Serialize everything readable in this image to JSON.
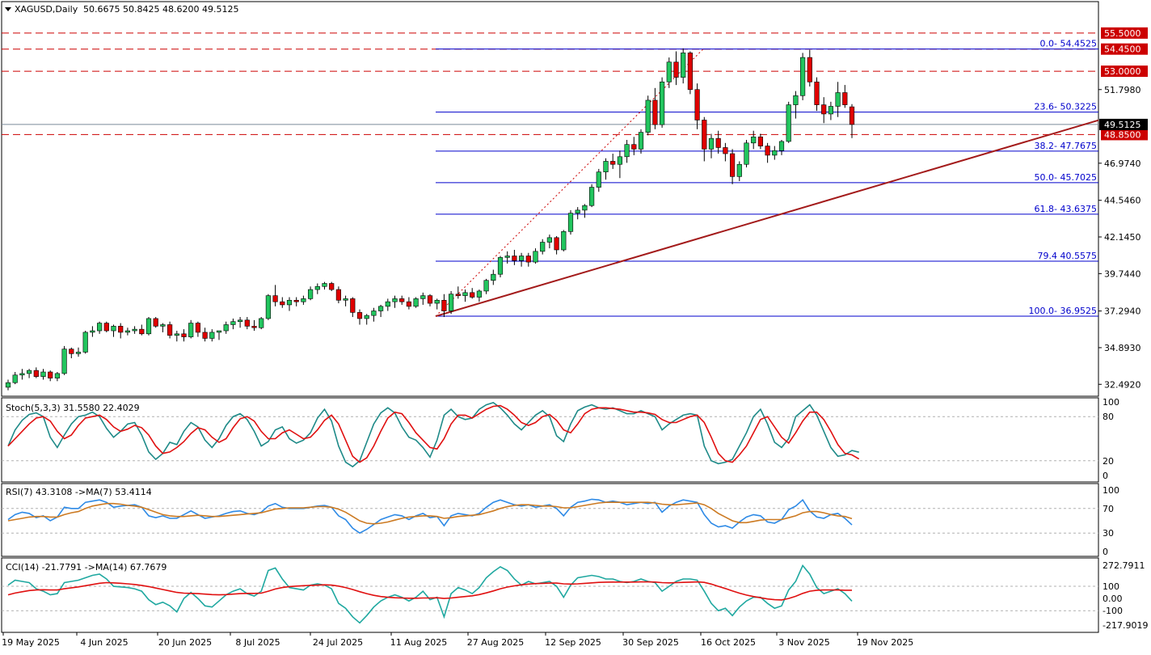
{
  "header": {
    "symbol": "XAGUSD,Daily",
    "ohlc": "50.6675 50.8425 48.6200 49.5125",
    "arrow_icon": "triangle-down-icon"
  },
  "colors": {
    "bull": "#22c55e",
    "bear": "#e00000",
    "wick": "#000000",
    "fib": "#0000cc",
    "trend": "#a31a1a",
    "hline": "#cc0000",
    "stoch_main": "#1e8a88",
    "stoch_signal": "#e01010",
    "rsi": "#2e8ae6",
    "rsi_ma": "#cc7a22",
    "cci": "#1fa8a0",
    "cci_ma": "#e01010"
  },
  "price_axis": {
    "ticks": [
      "51.7980",
      "49.5125",
      "46.9740",
      "44.5460",
      "42.1450",
      "39.7440",
      "37.2940",
      "34.8930",
      "32.4920"
    ],
    "current": "49.5125"
  },
  "levels": [
    {
      "value": 55.5,
      "label": "55.5000"
    },
    {
      "value": 54.45,
      "label": "54.4500"
    },
    {
      "value": 53.0,
      "label": "53.0000"
    },
    {
      "value": 48.85,
      "label": "48.8500"
    }
  ],
  "fib": [
    {
      "value": 54.4525,
      "label": "0.0- 54.4525"
    },
    {
      "value": 50.3225,
      "label": "23.6- 50.3225"
    },
    {
      "value": 47.7675,
      "label": "38.2- 47.7675"
    },
    {
      "value": 45.7025,
      "label": "50.0- 45.7025"
    },
    {
      "value": 43.6375,
      "label": "61.8- 43.6375"
    },
    {
      "value": 40.5575,
      "label": "79.4 40.5575"
    },
    {
      "value": 36.9525,
      "label": "100.0- 36.9525"
    }
  ],
  "date_axis": [
    "19 May 2025",
    "4 Jun 2025",
    "20 Jun 2025",
    "8 Jul 2025",
    "24 Jul 2025",
    "11 Aug 2025",
    "27 Aug 2025",
    "12 Sep 2025",
    "30 Sep 2025",
    "16 Oct 2025",
    "3 Nov 2025",
    "19 Nov 2025"
  ],
  "stoch": {
    "label": "Stoch(5,3,3) 31.5580 22.4029",
    "ticks": [
      "100",
      "80",
      "20",
      "0"
    ]
  },
  "rsi": {
    "label": "RSI(7) 43.3108  ->MA(7) 53.4114",
    "ticks": [
      "100",
      "70",
      "30",
      "0"
    ]
  },
  "cci": {
    "label": "CCI(14) -21.7791  ->MA(14) 67.7679",
    "ticks": [
      "272.7911",
      "100",
      "0.00",
      "-100",
      "-217.9019"
    ]
  },
  "chart_data": {
    "type": "candlestick",
    "symbol": "XAGUSD",
    "timeframe": "Daily",
    "ylim": [
      31.6,
      55.6
    ],
    "start_date": "2025-05-19",
    "end_date": "2025-11-21",
    "candles": [
      [
        32.3,
        32.8,
        32.1,
        32.6
      ],
      [
        32.6,
        33.3,
        32.5,
        33.1
      ],
      [
        33.1,
        33.5,
        32.8,
        33.2
      ],
      [
        33.2,
        33.5,
        32.9,
        33.4
      ],
      [
        33.4,
        33.6,
        32.9,
        33.0
      ],
      [
        33.0,
        33.5,
        32.8,
        33.3
      ],
      [
        33.3,
        33.4,
        32.7,
        32.9
      ],
      [
        32.9,
        33.3,
        32.7,
        33.2
      ],
      [
        33.2,
        35.0,
        33.1,
        34.8
      ],
      [
        34.8,
        34.9,
        34.2,
        34.5
      ],
      [
        34.5,
        34.9,
        34.3,
        34.6
      ],
      [
        34.6,
        36.0,
        34.5,
        35.9
      ],
      [
        35.9,
        36.3,
        35.6,
        36.0
      ],
      [
        36.0,
        36.6,
        35.8,
        36.5
      ],
      [
        36.5,
        36.6,
        35.9,
        36.0
      ],
      [
        36.0,
        36.4,
        35.6,
        36.3
      ],
      [
        36.3,
        36.5,
        35.5,
        35.9
      ],
      [
        35.9,
        36.2,
        35.7,
        36.0
      ],
      [
        36.0,
        36.3,
        35.8,
        36.1
      ],
      [
        36.1,
        36.4,
        35.7,
        35.8
      ],
      [
        35.8,
        36.9,
        35.7,
        36.8
      ],
      [
        36.8,
        36.9,
        36.2,
        36.3
      ],
      [
        36.3,
        36.5,
        35.9,
        36.4
      ],
      [
        36.4,
        36.6,
        35.5,
        35.7
      ],
      [
        35.7,
        36.0,
        35.3,
        35.8
      ],
      [
        35.8,
        36.1,
        35.3,
        35.6
      ],
      [
        35.6,
        36.7,
        35.5,
        36.5
      ],
      [
        36.5,
        36.6,
        35.6,
        35.9
      ],
      [
        35.9,
        36.2,
        35.3,
        35.5
      ],
      [
        35.5,
        36.1,
        35.3,
        35.9
      ],
      [
        35.9,
        36.0,
        35.4,
        36.0
      ],
      [
        36.0,
        36.6,
        35.8,
        36.4
      ],
      [
        36.4,
        36.8,
        36.1,
        36.6
      ],
      [
        36.6,
        36.9,
        36.2,
        36.7
      ],
      [
        36.7,
        36.9,
        36.1,
        36.3
      ],
      [
        36.3,
        36.7,
        36.0,
        36.2
      ],
      [
        36.2,
        36.9,
        36.1,
        36.8
      ],
      [
        36.8,
        38.4,
        36.7,
        38.3
      ],
      [
        38.3,
        39.0,
        37.6,
        37.9
      ],
      [
        37.9,
        38.2,
        37.5,
        37.7
      ],
      [
        37.7,
        38.2,
        37.3,
        38.0
      ],
      [
        38.0,
        38.2,
        37.6,
        37.9
      ],
      [
        37.9,
        38.3,
        37.7,
        38.1
      ],
      [
        38.1,
        38.9,
        38.0,
        38.7
      ],
      [
        38.7,
        39.1,
        38.4,
        38.9
      ],
      [
        38.9,
        39.2,
        38.7,
        39.1
      ],
      [
        39.1,
        39.2,
        38.6,
        38.7
      ],
      [
        38.7,
        38.9,
        37.8,
        38.0
      ],
      [
        38.0,
        38.3,
        37.6,
        38.1
      ],
      [
        38.1,
        38.2,
        36.9,
        37.2
      ],
      [
        37.2,
        37.4,
        36.4,
        36.8
      ],
      [
        36.8,
        37.1,
        36.4,
        37.0
      ],
      [
        37.0,
        37.5,
        36.6,
        37.3
      ],
      [
        37.3,
        37.7,
        36.9,
        37.6
      ],
      [
        37.6,
        38.1,
        37.3,
        37.9
      ],
      [
        37.9,
        38.3,
        37.5,
        38.1
      ],
      [
        38.1,
        38.3,
        37.7,
        37.9
      ],
      [
        37.9,
        38.2,
        37.4,
        37.6
      ],
      [
        37.6,
        38.2,
        37.5,
        38.1
      ],
      [
        38.1,
        38.5,
        37.7,
        38.3
      ],
      [
        38.3,
        38.4,
        37.6,
        37.8
      ],
      [
        37.8,
        38.1,
        37.4,
        38.0
      ],
      [
        38.0,
        38.4,
        36.9,
        37.3
      ],
      [
        37.3,
        38.6,
        37.1,
        38.4
      ],
      [
        38.4,
        38.9,
        38.1,
        38.3
      ],
      [
        38.3,
        38.7,
        37.9,
        38.5
      ],
      [
        38.5,
        38.8,
        38.1,
        38.2
      ],
      [
        38.2,
        38.7,
        37.9,
        38.6
      ],
      [
        38.6,
        39.4,
        38.4,
        39.3
      ],
      [
        39.3,
        40.0,
        39.0,
        39.7
      ],
      [
        39.7,
        40.9,
        39.5,
        40.8
      ],
      [
        40.8,
        41.2,
        40.4,
        40.9
      ],
      [
        40.9,
        41.3,
        40.3,
        40.6
      ],
      [
        40.6,
        41.1,
        40.2,
        40.9
      ],
      [
        40.9,
        41.1,
        40.2,
        40.5
      ],
      [
        40.5,
        41.4,
        40.4,
        41.2
      ],
      [
        41.2,
        42.0,
        41.0,
        41.8
      ],
      [
        41.8,
        42.3,
        41.4,
        42.1
      ],
      [
        42.1,
        42.2,
        41.0,
        41.3
      ],
      [
        41.3,
        42.6,
        41.2,
        42.5
      ],
      [
        42.5,
        43.9,
        42.3,
        43.7
      ],
      [
        43.7,
        44.1,
        43.3,
        43.9
      ],
      [
        43.9,
        44.3,
        43.4,
        44.2
      ],
      [
        44.2,
        45.6,
        44.1,
        45.4
      ],
      [
        45.4,
        46.6,
        45.1,
        46.4
      ],
      [
        46.4,
        47.3,
        45.9,
        47.1
      ],
      [
        47.1,
        47.6,
        46.6,
        46.9
      ],
      [
        46.9,
        47.8,
        46.0,
        47.4
      ],
      [
        47.4,
        48.5,
        47.0,
        48.2
      ],
      [
        48.2,
        48.7,
        47.5,
        47.9
      ],
      [
        47.9,
        49.2,
        47.6,
        49.0
      ],
      [
        49.0,
        51.4,
        48.8,
        51.1
      ],
      [
        51.1,
        51.9,
        49.2,
        49.5
      ],
      [
        49.5,
        52.6,
        49.3,
        52.3
      ],
      [
        52.3,
        53.9,
        51.9,
        53.6
      ],
      [
        53.6,
        54.3,
        52.1,
        52.6
      ],
      [
        52.6,
        54.5,
        52.2,
        54.2
      ],
      [
        54.2,
        54.3,
        51.5,
        51.8
      ],
      [
        51.8,
        52.2,
        49.2,
        49.8
      ],
      [
        49.8,
        50.0,
        47.1,
        47.9
      ],
      [
        47.9,
        48.9,
        47.3,
        48.6
      ],
      [
        48.6,
        49.1,
        47.6,
        48.0
      ],
      [
        48.0,
        48.3,
        47.1,
        47.6
      ],
      [
        47.6,
        47.9,
        45.6,
        46.1
      ],
      [
        46.1,
        47.1,
        45.8,
        46.9
      ],
      [
        46.9,
        48.5,
        46.7,
        48.3
      ],
      [
        48.3,
        49.1,
        47.9,
        48.7
      ],
      [
        48.7,
        48.9,
        47.9,
        48.1
      ],
      [
        48.1,
        48.3,
        47.0,
        47.5
      ],
      [
        47.5,
        48.1,
        47.2,
        47.8
      ],
      [
        47.8,
        48.5,
        47.5,
        48.4
      ],
      [
        48.4,
        51.0,
        48.3,
        50.8
      ],
      [
        50.8,
        51.7,
        49.9,
        51.4
      ],
      [
        51.4,
        54.2,
        51.1,
        53.9
      ],
      [
        53.9,
        54.4,
        52.0,
        52.3
      ],
      [
        52.3,
        52.6,
        50.4,
        50.8
      ],
      [
        50.8,
        51.3,
        49.6,
        50.2
      ],
      [
        50.2,
        51.0,
        49.8,
        50.7
      ],
      [
        50.7,
        52.3,
        50.0,
        51.6
      ],
      [
        51.6,
        52.1,
        50.6,
        50.8
      ],
      [
        50.6675,
        50.8425,
        48.62,
        49.5125
      ]
    ],
    "trendline": [
      [
        0,
        36.95
      ],
      [
        127,
        54.25
      ]
    ],
    "stoch_main": [
      40,
      62,
      75,
      83,
      85,
      80,
      52,
      38,
      55,
      70,
      80,
      82,
      86,
      80,
      64,
      52,
      60,
      70,
      72,
      55,
      32,
      22,
      30,
      45,
      42,
      60,
      72,
      66,
      48,
      38,
      50,
      68,
      80,
      84,
      76,
      60,
      40,
      46,
      62,
      66,
      50,
      44,
      48,
      58,
      78,
      90,
      74,
      40,
      18,
      12,
      20,
      45,
      70,
      85,
      92,
      85,
      66,
      52,
      48,
      38,
      25,
      48,
      82,
      90,
      80,
      76,
      78,
      90,
      96,
      99,
      92,
      82,
      70,
      62,
      72,
      82,
      88,
      80,
      54,
      46,
      70,
      88,
      93,
      96,
      92,
      90,
      92,
      88,
      84,
      84,
      88,
      84,
      80,
      62,
      70,
      76,
      82,
      84,
      82,
      40,
      20,
      16,
      18,
      22,
      40,
      58,
      80,
      90,
      70,
      45,
      38,
      50,
      80,
      88,
      96,
      82,
      60,
      38,
      26,
      28,
      34,
      31.6
    ],
    "stoch_signal": [
      40,
      50,
      60,
      70,
      78,
      80,
      74,
      60,
      50,
      55,
      68,
      78,
      80,
      82,
      76,
      66,
      60,
      63,
      68,
      65,
      55,
      40,
      30,
      32,
      38,
      46,
      57,
      65,
      62,
      52,
      45,
      50,
      65,
      77,
      80,
      74,
      60,
      50,
      50,
      58,
      62,
      56,
      50,
      52,
      62,
      75,
      82,
      70,
      48,
      26,
      18,
      24,
      40,
      60,
      78,
      86,
      84,
      72,
      58,
      48,
      38,
      36,
      50,
      70,
      82,
      82,
      78,
      84,
      90,
      94,
      95,
      90,
      82,
      72,
      68,
      72,
      80,
      83,
      75,
      62,
      58,
      70,
      84,
      90,
      92,
      92,
      91,
      90,
      88,
      86,
      86,
      85,
      83,
      76,
      72,
      72,
      76,
      80,
      82,
      72,
      52,
      30,
      20,
      18,
      28,
      40,
      58,
      76,
      80,
      66,
      52,
      44,
      58,
      74,
      86,
      86,
      76,
      60,
      42,
      30,
      28,
      22.4
    ],
    "rsi": [
      52,
      60,
      64,
      62,
      55,
      58,
      50,
      56,
      72,
      70,
      70,
      80,
      82,
      84,
      80,
      72,
      74,
      75,
      76,
      72,
      58,
      55,
      58,
      54,
      54,
      60,
      66,
      60,
      54,
      56,
      58,
      62,
      65,
      66,
      62,
      60,
      64,
      74,
      78,
      72,
      70,
      70,
      70,
      72,
      74,
      75,
      72,
      58,
      52,
      38,
      30,
      36,
      44,
      52,
      56,
      60,
      58,
      52,
      58,
      62,
      55,
      57,
      42,
      58,
      62,
      60,
      58,
      62,
      72,
      80,
      84,
      80,
      76,
      74,
      76,
      72,
      74,
      76,
      70,
      58,
      72,
      80,
      82,
      85,
      84,
      80,
      82,
      80,
      76,
      78,
      80,
      78,
      80,
      64,
      74,
      80,
      84,
      82,
      80,
      60,
      46,
      40,
      42,
      38,
      48,
      56,
      60,
      58,
      48,
      46,
      52,
      68,
      74,
      84,
      66,
      56,
      54,
      60,
      62,
      54,
      43.3
    ],
    "rsi_ma": [
      50,
      52,
      54,
      56,
      57,
      57,
      56,
      56,
      60,
      63,
      65,
      70,
      74,
      76,
      78,
      78,
      77,
      75,
      74,
      72,
      68,
      64,
      60,
      58,
      57,
      57,
      58,
      59,
      58,
      57,
      57,
      58,
      59,
      60,
      61,
      62,
      63,
      66,
      69,
      70,
      71,
      71,
      71,
      72,
      73,
      73,
      72,
      69,
      64,
      57,
      50,
      46,
      45,
      46,
      48,
      51,
      54,
      56,
      57,
      58,
      58,
      57,
      54,
      55,
      57,
      58,
      59,
      60,
      63,
      66,
      70,
      73,
      75,
      76,
      76,
      75,
      74,
      74,
      73,
      71,
      71,
      73,
      75,
      77,
      79,
      80,
      80,
      80,
      80,
      80,
      80,
      80,
      79,
      77,
      76,
      76,
      77,
      78,
      79,
      76,
      70,
      62,
      56,
      50,
      47,
      47,
      49,
      51,
      52,
      52,
      52,
      55,
      58,
      63,
      65,
      65,
      63,
      60,
      58,
      57,
      53.4
    ],
    "cci": [
      110,
      150,
      140,
      130,
      80,
      60,
      30,
      40,
      130,
      140,
      150,
      170,
      190,
      200,
      160,
      100,
      95,
      90,
      80,
      60,
      -10,
      -50,
      -30,
      -60,
      -110,
      0,
      50,
      0,
      -60,
      -70,
      -20,
      30,
      60,
      80,
      40,
      20,
      60,
      230,
      250,
      160,
      90,
      80,
      70,
      110,
      120,
      110,
      80,
      -40,
      -80,
      -150,
      -200,
      -140,
      -70,
      -20,
      10,
      30,
      10,
      -20,
      10,
      60,
      -10,
      10,
      -150,
      40,
      90,
      70,
      40,
      90,
      170,
      220,
      260,
      230,
      160,
      110,
      140,
      120,
      130,
      140,
      100,
      10,
      110,
      170,
      180,
      190,
      180,
      160,
      160,
      140,
      130,
      140,
      160,
      140,
      130,
      60,
      100,
      140,
      160,
      160,
      150,
      60,
      -40,
      -100,
      -80,
      -140,
      -70,
      -20,
      10,
      10,
      -40,
      -80,
      -60,
      70,
      140,
      270,
      200,
      90,
      40,
      60,
      80,
      40,
      -21.8
    ],
    "cci_ma": [
      30,
      45,
      55,
      65,
      70,
      72,
      70,
      70,
      80,
      88,
      95,
      105,
      115,
      125,
      130,
      128,
      125,
      120,
      115,
      108,
      98,
      86,
      74,
      62,
      50,
      44,
      42,
      40,
      36,
      32,
      30,
      32,
      36,
      40,
      42,
      42,
      44,
      60,
      78,
      90,
      98,
      102,
      105,
      108,
      110,
      112,
      110,
      102,
      90,
      74,
      56,
      40,
      26,
      16,
      10,
      6,
      4,
      2,
      2,
      4,
      4,
      6,
      0,
      4,
      10,
      16,
      22,
      32,
      46,
      62,
      80,
      94,
      104,
      112,
      118,
      122,
      124,
      126,
      126,
      120,
      118,
      120,
      124,
      128,
      132,
      134,
      135,
      135,
      135,
      135,
      136,
      136,
      135,
      130,
      128,
      130,
      132,
      134,
      136,
      132,
      118,
      100,
      82,
      62,
      44,
      28,
      16,
      6,
      -4,
      -10,
      -12,
      0,
      18,
      42,
      60,
      68,
      70,
      70,
      70,
      68,
      67.8
    ]
  }
}
